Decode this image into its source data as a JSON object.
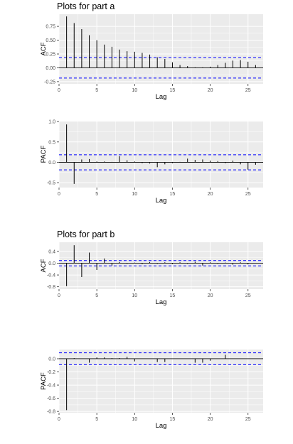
{
  "titles": [
    "Plots for part a",
    "Plots for part b"
  ],
  "colors": {
    "panel": "#ebebeb",
    "grid": "#ffffff",
    "bar": "#000000",
    "band": "#0000ff"
  },
  "chart_data": [
    {
      "type": "bar",
      "title": "Plots for part a",
      "xlabel": "Lag",
      "ylabel": "ACF",
      "xlim": [
        0,
        27
      ],
      "ylim": [
        -0.29,
        0.97
      ],
      "xticks": [
        0,
        5,
        10,
        15,
        20,
        25
      ],
      "yticks": [
        -0.25,
        0.0,
        0.25,
        0.5,
        0.75
      ],
      "ytick_labels": [
        "-0.25",
        "0.00",
        "0.25",
        "0.50",
        "0.75"
      ],
      "confidence_band": 0.185,
      "x": [
        1,
        2,
        3,
        4,
        5,
        6,
        7,
        8,
        9,
        10,
        11,
        12,
        13,
        14,
        15,
        16,
        17,
        18,
        19,
        20,
        21,
        22,
        23,
        24,
        25,
        26
      ],
      "values": [
        0.93,
        0.81,
        0.7,
        0.59,
        0.5,
        0.42,
        0.38,
        0.33,
        0.3,
        0.29,
        0.27,
        0.24,
        0.19,
        0.16,
        0.1,
        0.05,
        0.03,
        0.01,
        0.01,
        0.02,
        0.05,
        0.09,
        0.13,
        0.14,
        0.11,
        0.05
      ]
    },
    {
      "type": "bar",
      "title": "",
      "xlabel": "Lag",
      "ylabel": "PACF",
      "xlim": [
        0,
        27
      ],
      "ylim": [
        -0.62,
        1.02
      ],
      "xticks": [
        0,
        5,
        10,
        15,
        20,
        25
      ],
      "yticks": [
        -0.5,
        0.0,
        0.5,
        1.0
      ],
      "ytick_labels": [
        "-0.5",
        "0.0",
        "0.5",
        "1.0"
      ],
      "confidence_band": 0.185,
      "x": [
        1,
        2,
        3,
        4,
        5,
        6,
        7,
        8,
        9,
        10,
        11,
        12,
        13,
        14,
        15,
        16,
        17,
        18,
        19,
        20,
        21,
        22,
        23,
        24,
        25,
        26
      ],
      "values": [
        0.93,
        -0.53,
        0.07,
        0.08,
        0.02,
        0.02,
        0.01,
        0.15,
        0.05,
        0.02,
        -0.02,
        -0.03,
        -0.12,
        -0.05,
        -0.02,
        0.01,
        0.09,
        0.06,
        0.07,
        0.04,
        0.03,
        -0.02,
        0.04,
        -0.05,
        -0.18,
        -0.06
      ]
    },
    {
      "type": "bar",
      "title": "Plots for part b",
      "xlabel": "Lag",
      "ylabel": "ACF",
      "xlim": [
        0,
        27
      ],
      "ylim": [
        -0.88,
        0.71
      ],
      "xticks": [
        0,
        5,
        10,
        15,
        20,
        25
      ],
      "yticks": [
        -0.8,
        -0.4,
        0.0,
        0.4
      ],
      "ytick_labels": [
        "-0.8",
        "-0.4",
        "0.0",
        "0.4"
      ],
      "confidence_band": 0.09,
      "x": [
        1,
        2,
        3,
        4,
        5,
        6,
        7,
        8,
        9,
        10,
        11,
        12,
        13,
        14,
        15,
        16,
        17,
        18,
        19,
        20,
        21,
        22,
        23,
        24,
        25,
        26
      ],
      "values": [
        -0.78,
        0.61,
        -0.47,
        0.36,
        -0.23,
        0.16,
        -0.08,
        0.04,
        -0.02,
        0.02,
        -0.03,
        0.04,
        -0.02,
        0.03,
        -0.03,
        0.03,
        -0.02,
        0.05,
        -0.08,
        0.03,
        -0.02,
        0.02,
        -0.05,
        0.03,
        -0.04,
        0.01
      ]
    },
    {
      "type": "bar",
      "title": "",
      "xlabel": "Lag",
      "ylabel": "PACF",
      "xlim": [
        0,
        27
      ],
      "ylim": [
        -0.82,
        0.14
      ],
      "xticks": [
        0,
        5,
        10,
        15,
        20,
        25
      ],
      "yticks": [
        -0.8,
        -0.6,
        -0.4,
        -0.2,
        0.0
      ],
      "ytick_labels": [
        "-0.8",
        "-0.6",
        "-0.4",
        "-0.2",
        "0.0"
      ],
      "confidence_band": 0.09,
      "x": [
        1,
        2,
        3,
        4,
        5,
        6,
        7,
        8,
        9,
        10,
        11,
        12,
        13,
        14,
        15,
        16,
        17,
        18,
        19,
        20,
        21,
        22,
        23,
        24,
        25,
        26
      ],
      "values": [
        -0.78,
        0.01,
        0.0,
        -0.06,
        0.02,
        0.02,
        0.01,
        0.01,
        0.03,
        -0.04,
        0.0,
        0.0,
        -0.05,
        -0.05,
        0.0,
        0.0,
        0.0,
        -0.06,
        -0.06,
        -0.03,
        0.0,
        0.06,
        0.0,
        0.0,
        0.0,
        0.0
      ]
    }
  ]
}
